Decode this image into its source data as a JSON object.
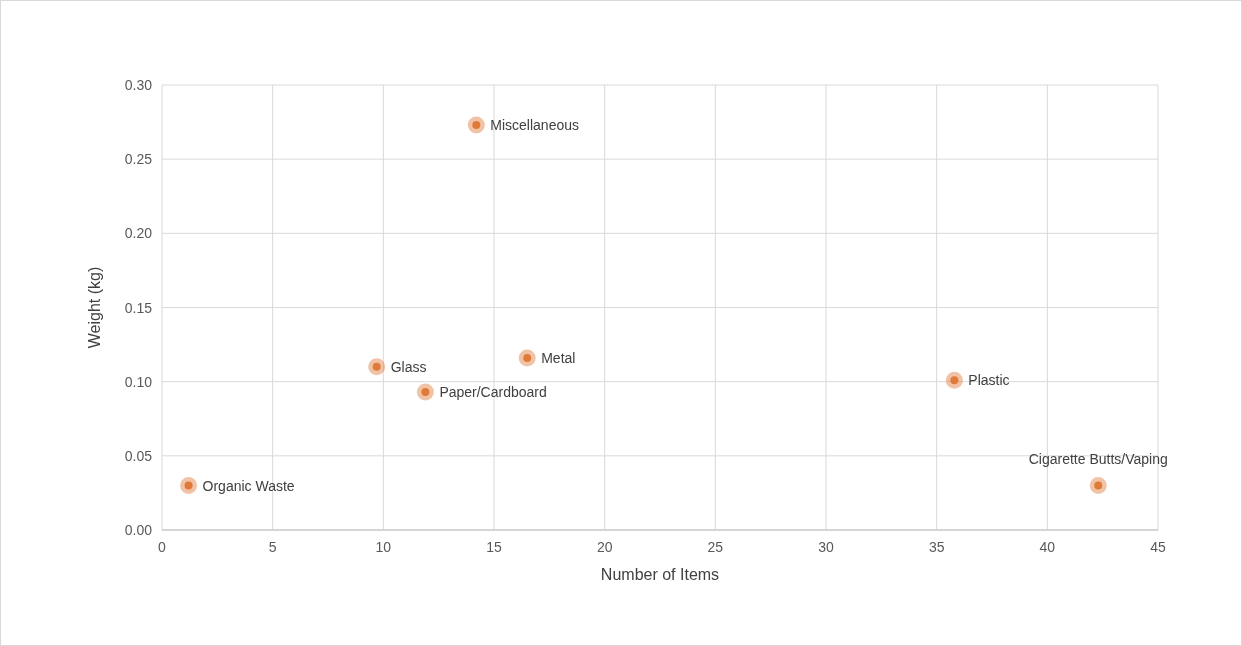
{
  "chart_data": {
    "type": "scatter",
    "xlabel": "Number of Items",
    "ylabel": "Weight (kg)",
    "x": [
      1.2,
      9.7,
      11.9,
      14.2,
      16.5,
      35.8,
      42.3
    ],
    "series": [
      {
        "color": "#e07b39",
        "values": [
          0.03,
          0.11,
          0.093,
          0.273,
          0.116,
          0.101,
          0.03
        ]
      }
    ],
    "annotations": [
      {
        "text": "Organic Waste",
        "x": 1.2,
        "y": 0.03
      },
      {
        "text": "Glass",
        "x": 9.7,
        "y": 0.11
      },
      {
        "text": "Paper/Cardboard",
        "x": 11.9,
        "y": 0.093
      },
      {
        "text": "Miscellaneous",
        "x": 14.2,
        "y": 0.273
      },
      {
        "text": "Metal",
        "x": 16.5,
        "y": 0.116
      },
      {
        "text": "Plastic",
        "x": 35.8,
        "y": 0.101
      },
      {
        "text": "Cigarette Butts/Vaping",
        "x": 42.3,
        "y": 0.03
      }
    ],
    "xlim": [
      0,
      45
    ],
    "xticks": [
      0,
      5,
      10,
      15,
      20,
      25,
      30,
      35,
      40,
      45
    ],
    "ylim": [
      0,
      0.3
    ],
    "yticks": [
      {
        "value": 0,
        "label": "0.00"
      },
      {
        "value": 0.05,
        "label": "0.05"
      },
      {
        "value": 0.1,
        "label": "0.10"
      },
      {
        "value": 0.15,
        "label": "0.15"
      },
      {
        "value": 0.2,
        "label": "0.20"
      },
      {
        "value": 0.25,
        "label": "0.25"
      },
      {
        "value": 0.3,
        "label": "0.30"
      }
    ],
    "grid": true,
    "marker": "circle"
  }
}
